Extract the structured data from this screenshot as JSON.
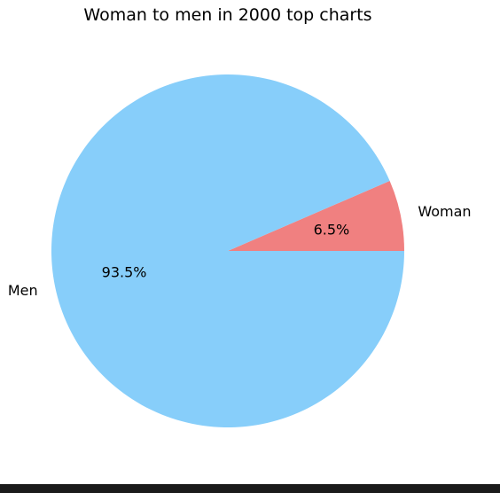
{
  "chart_data": {
    "type": "pie",
    "title": "Woman to men in 2000 top charts",
    "slices": [
      {
        "label": "Woman",
        "value": 6.5,
        "pct_label": "6.5%",
        "color": "#f08080"
      },
      {
        "label": "Men",
        "value": 93.5,
        "pct_label": "93.5%",
        "color": "#87cefa"
      }
    ],
    "start_angle_deg": 0,
    "direction": "counterclockwise"
  }
}
